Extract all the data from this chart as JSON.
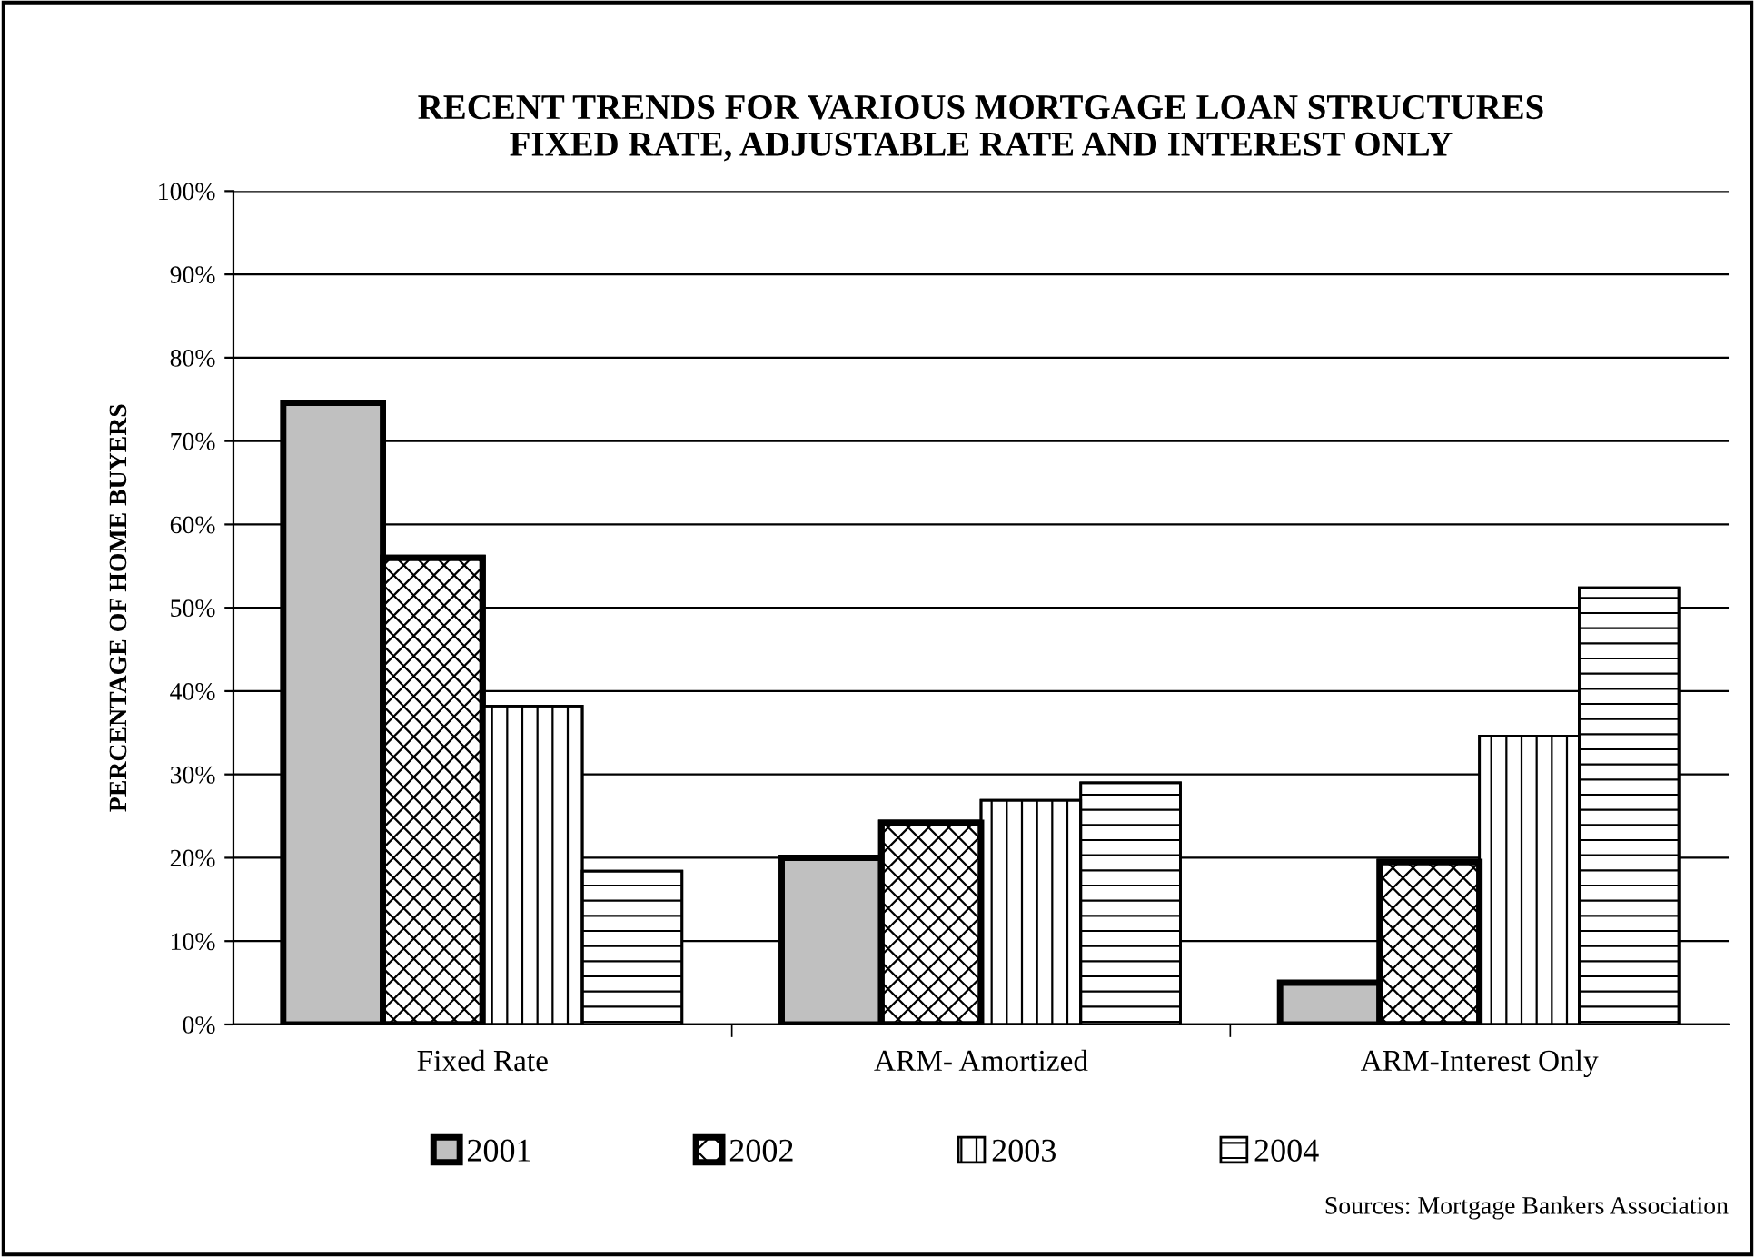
{
  "chart_data": {
    "type": "bar",
    "title": "RECENT TRENDS FOR VARIOUS MORTGAGE LOAN STRUCTURES\nFIXED RATE, ADJUSTABLE RATE AND INTEREST ONLY",
    "ylabel": "PERCENTAGE OF HOME BUYERS",
    "categories": [
      "Fixed Rate",
      "ARM- Amortized",
      "ARM-Interest Only"
    ],
    "series": [
      {
        "name": "2001",
        "color": "#c0c0c0",
        "values": [
          74.6,
          20,
          5
        ]
      },
      {
        "name": "2002",
        "color": "#ffffff",
        "values": [
          56,
          24.2,
          19.5
        ]
      },
      {
        "name": "2003",
        "color": "#ffffff",
        "values": [
          38.2,
          26.9,
          34.6
        ]
      },
      {
        "name": "2004",
        "color": "#ffffff",
        "values": [
          18.4,
          29,
          52.4
        ]
      }
    ],
    "ylim": [
      0,
      100
    ],
    "yticks": [
      {
        "value": 0,
        "label": "0%"
      },
      {
        "value": 10,
        "label": "10%"
      },
      {
        "value": 20,
        "label": "20%"
      },
      {
        "value": 30,
        "label": "30%"
      },
      {
        "value": 40,
        "label": "40%"
      },
      {
        "value": 50,
        "label": "50%"
      },
      {
        "value": 60,
        "label": "60%"
      },
      {
        "value": 70,
        "label": "70%"
      },
      {
        "value": 80,
        "label": "80%"
      },
      {
        "value": 90,
        "label": "90%"
      },
      {
        "value": 100,
        "label": "100%"
      }
    ],
    "grid": "y",
    "legend": "bottom",
    "annotations": [
      "Sources: Mortgage Bankers Association"
    ]
  }
}
